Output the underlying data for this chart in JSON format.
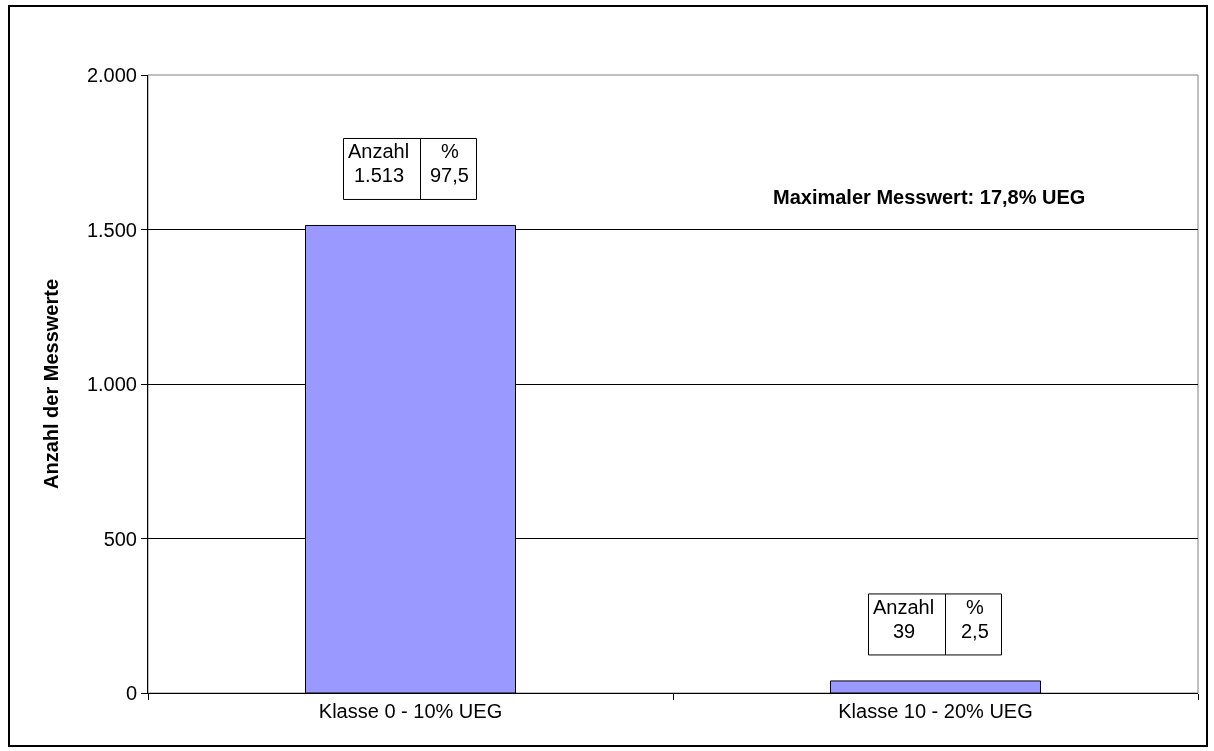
{
  "chart_data": {
    "type": "bar",
    "ylabel": "Anzahl der Messwerte",
    "categories": [
      "Klasse 0 - 10% UEG",
      "Klasse 10 - 20% UEG"
    ],
    "values": [
      1513,
      39
    ],
    "color": "#9999ff",
    "ylim": [
      0,
      2000
    ],
    "yticks": [
      0,
      500,
      {
        "value": 1000,
        "label": "1.000"
      },
      {
        "value": 1500,
        "label": "1.500"
      },
      {
        "value": 2000,
        "label": "2.000"
      }
    ],
    "grid": "y",
    "value_labels": [
      "1.513",
      "39"
    ],
    "annotations": [
      "Anzahl",
      "%",
      "Anzahl",
      "%",
      {
        "text": "97,5",
        "x": "Klasse 0 - 10% UEG",
        "y": 1513
      },
      {
        "text": "2,5",
        "x": "Klasse 10 - 20% UEG",
        "y": 39
      },
      "Maximaler Messwert: 17,8% UEG"
    ]
  }
}
